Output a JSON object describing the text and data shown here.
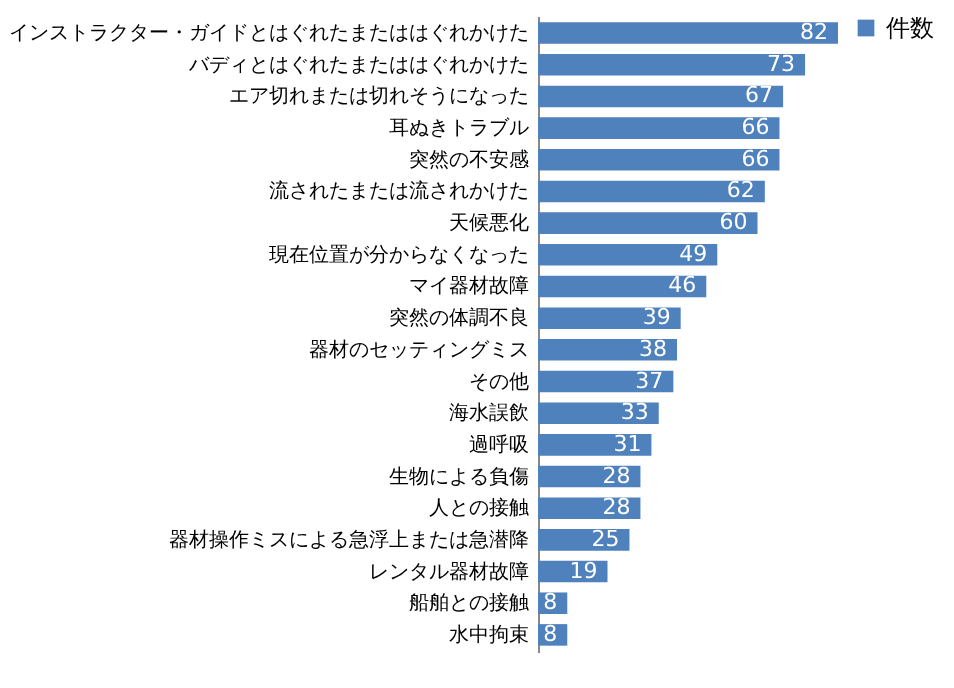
{
  "chart_data": {
    "type": "bar",
    "orientation": "horizontal",
    "data_labels": true,
    "legend": "right",
    "categories": [
      "インストラクター・ガイドとはぐれたまたははぐれかけた",
      "バディとはぐれたまたははぐれかけた",
      "エア切れまたは切れそうになった",
      "耳ぬきトラブル",
      "突然の不安感",
      "流されたまたは流されかけた",
      "天候悪化",
      "現在位置が分からなくなった",
      "マイ器材故障",
      "突然の体調不良",
      "器材のセッティングミス",
      "その他",
      "海水誤飲",
      "過呼吸",
      "生物による負傷",
      "人との接触",
      "器材操作ミスによる急浮上または急潜降",
      "レンタル器材故障",
      "船舶との接触",
      "水中拘束"
    ],
    "series": [
      {
        "name": "件数",
        "color": "#4f81bd",
        "values": [
          82,
          73,
          67,
          66,
          66,
          62,
          60,
          49,
          46,
          39,
          38,
          37,
          33,
          31,
          28,
          28,
          25,
          19,
          8,
          8
        ]
      }
    ]
  }
}
